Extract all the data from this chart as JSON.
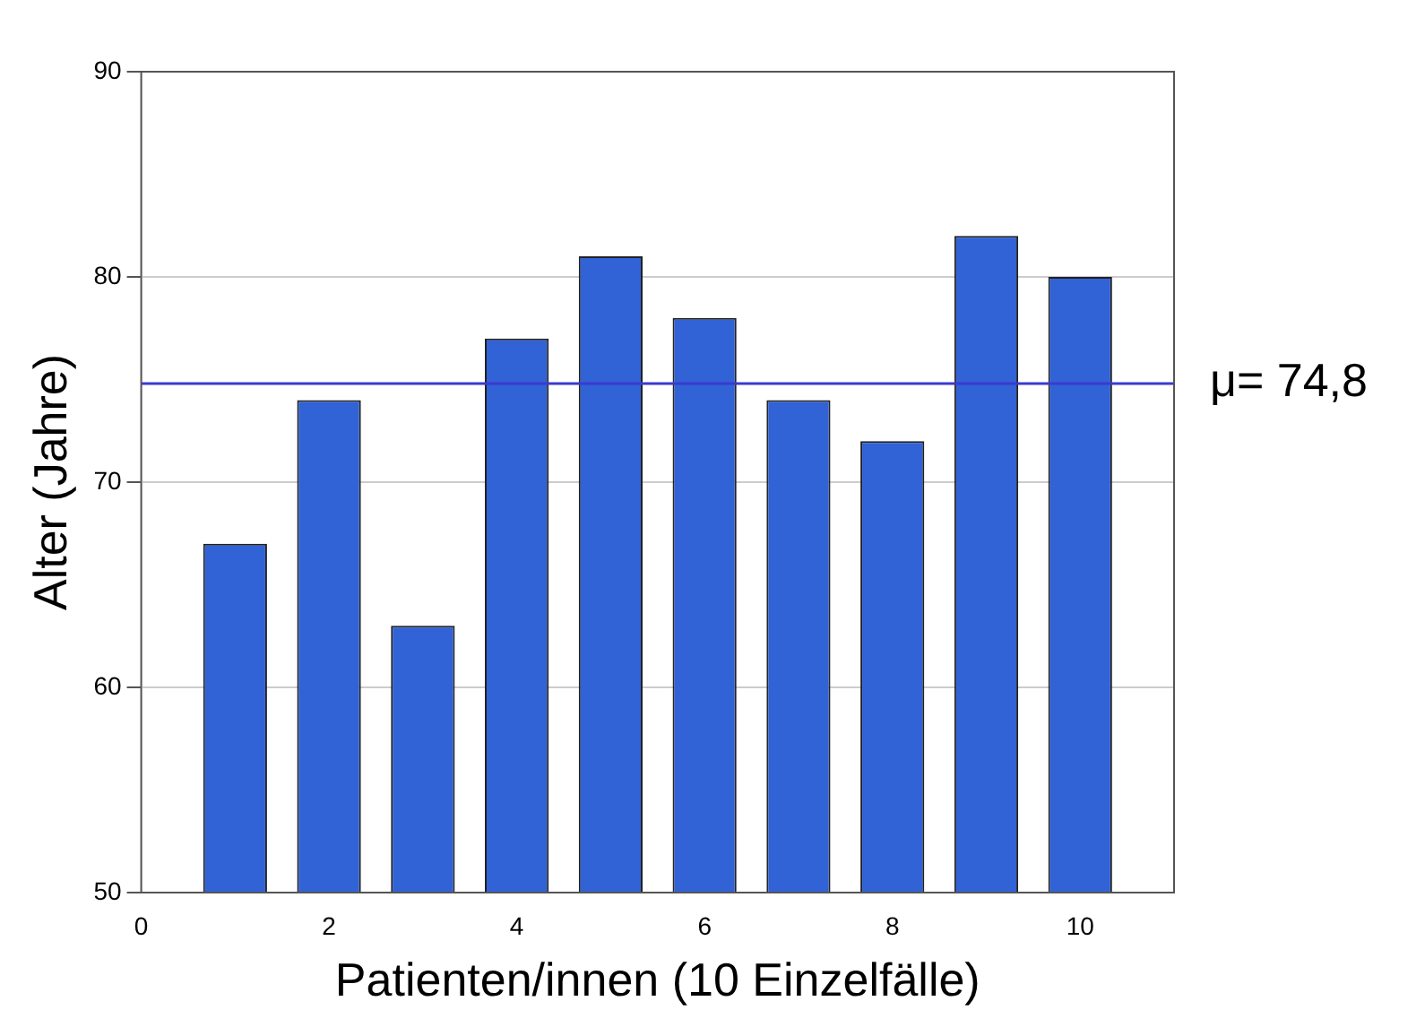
{
  "chart_data": {
    "type": "bar",
    "xlabel": "Patienten/innen (10 Einzelfälle)",
    "ylabel": "Alter (Jahre)",
    "x": [
      1,
      2,
      3,
      4,
      5,
      6,
      7,
      8,
      9,
      10
    ],
    "values": [
      67,
      74,
      63,
      77,
      81,
      78,
      74,
      72,
      82,
      80
    ],
    "color": "#3162d6",
    "xlim": [
      0,
      11
    ],
    "xticks": [
      0,
      2,
      4,
      6,
      8,
      10
    ],
    "ylim": [
      50,
      90
    ],
    "yticks": [
      50,
      60,
      70,
      80,
      90
    ],
    "grid": "y",
    "ref_lines": [
      {
        "axis": "y",
        "value": 74.8,
        "label": "μ= 74,8",
        "color": "#3a3ad0"
      }
    ]
  }
}
